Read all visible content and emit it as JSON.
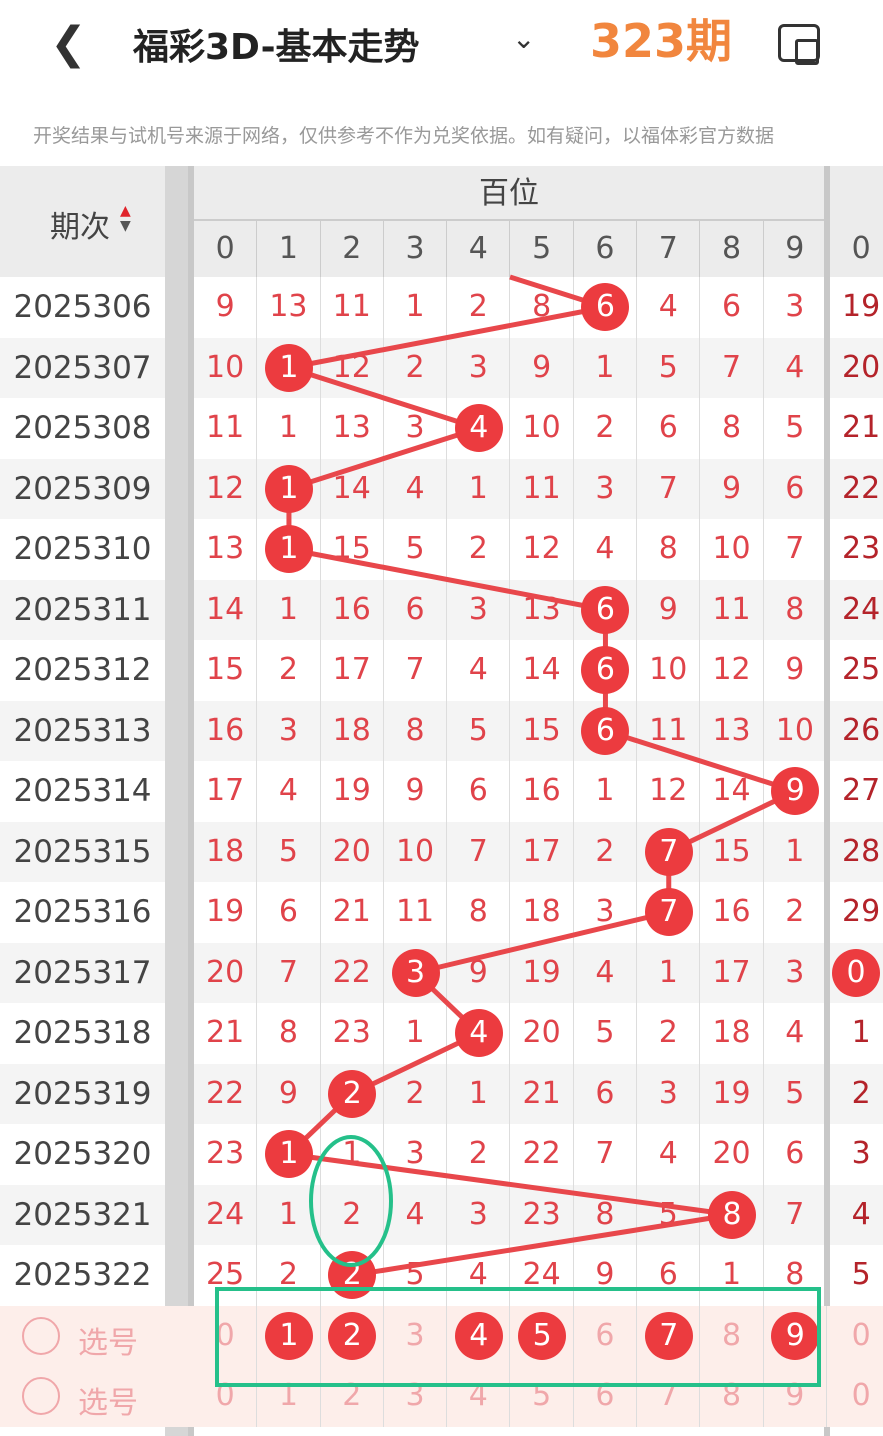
{
  "header": {
    "title": "福彩3D-基本走势",
    "back_icon": "chevron-left-icon",
    "dropdown_icon": "chevron-down-icon",
    "rotate_icon": "screen-rotate-icon"
  },
  "notice": "开奖结果与试机号来源于网络，仅供参考不作为兑奖依据。如有疑问，以福体彩官方数据",
  "table": {
    "period_header": "期次",
    "group_header": "百位",
    "digits": [
      "0",
      "1",
      "2",
      "3",
      "4",
      "5",
      "6",
      "7",
      "8",
      "9"
    ],
    "next_group_first": "0",
    "rows": [
      {
        "period": "2025306",
        "cells": [
          9,
          13,
          11,
          1,
          2,
          8,
          6,
          4,
          6,
          3
        ],
        "hit": 6,
        "next": "19"
      },
      {
        "period": "2025307",
        "cells": [
          10,
          1,
          12,
          2,
          3,
          9,
          1,
          5,
          7,
          4
        ],
        "hit": 1,
        "next": "20"
      },
      {
        "period": "2025308",
        "cells": [
          11,
          1,
          13,
          3,
          4,
          10,
          2,
          6,
          8,
          5
        ],
        "hit": 4,
        "next": "21"
      },
      {
        "period": "2025309",
        "cells": [
          12,
          1,
          14,
          4,
          1,
          11,
          3,
          7,
          9,
          6
        ],
        "hit": 1,
        "next": "22"
      },
      {
        "period": "2025310",
        "cells": [
          13,
          1,
          15,
          5,
          2,
          12,
          4,
          8,
          10,
          7
        ],
        "hit": 1,
        "next": "23"
      },
      {
        "period": "2025311",
        "cells": [
          14,
          1,
          16,
          6,
          3,
          13,
          6,
          9,
          11,
          8
        ],
        "hit": 6,
        "next": "24"
      },
      {
        "period": "2025312",
        "cells": [
          15,
          2,
          17,
          7,
          4,
          14,
          6,
          10,
          12,
          9
        ],
        "hit": 6,
        "next": "25"
      },
      {
        "period": "2025313",
        "cells": [
          16,
          3,
          18,
          8,
          5,
          15,
          6,
          11,
          13,
          10
        ],
        "hit": 6,
        "next": "26"
      },
      {
        "period": "2025314",
        "cells": [
          17,
          4,
          19,
          9,
          6,
          16,
          1,
          12,
          14,
          9
        ],
        "hit": 9,
        "next": "27"
      },
      {
        "period": "2025315",
        "cells": [
          18,
          5,
          20,
          10,
          7,
          17,
          2,
          7,
          15,
          1
        ],
        "hit": 7,
        "next": "28"
      },
      {
        "period": "2025316",
        "cells": [
          19,
          6,
          21,
          11,
          8,
          18,
          3,
          7,
          16,
          2
        ],
        "hit": 7,
        "next": "29"
      },
      {
        "period": "2025317",
        "cells": [
          20,
          7,
          22,
          3,
          9,
          19,
          4,
          1,
          17,
          3
        ],
        "hit": 3,
        "next": "0",
        "next_hit": true
      },
      {
        "period": "2025318",
        "cells": [
          21,
          8,
          23,
          1,
          4,
          20,
          5,
          2,
          18,
          4
        ],
        "hit": 4,
        "next": "1"
      },
      {
        "period": "2025319",
        "cells": [
          22,
          9,
          2,
          2,
          1,
          21,
          6,
          3,
          19,
          5
        ],
        "hit": 2,
        "next": "2"
      },
      {
        "period": "2025320",
        "cells": [
          23,
          1,
          1,
          3,
          2,
          22,
          7,
          4,
          20,
          6
        ],
        "hit": 1,
        "next": "3"
      },
      {
        "period": "2025321",
        "cells": [
          24,
          1,
          2,
          4,
          3,
          23,
          8,
          5,
          8,
          7
        ],
        "hit": 8,
        "next": "4"
      },
      {
        "period": "2025322",
        "cells": [
          25,
          2,
          2,
          5,
          4,
          24,
          9,
          6,
          1,
          8
        ],
        "hit": 2,
        "next": "5"
      }
    ],
    "pick_row": {
      "label": "选号",
      "selected": [
        1,
        2,
        4,
        5,
        7,
        9
      ],
      "next": "0"
    },
    "pick_row2": {
      "label": "选号",
      "next": "0"
    }
  },
  "annotation": {
    "text": "323期",
    "color": "#f07a2a",
    "box_color": "#25c08a"
  },
  "colors": {
    "accent": "#ec3b3f",
    "number": "#e0434a"
  }
}
